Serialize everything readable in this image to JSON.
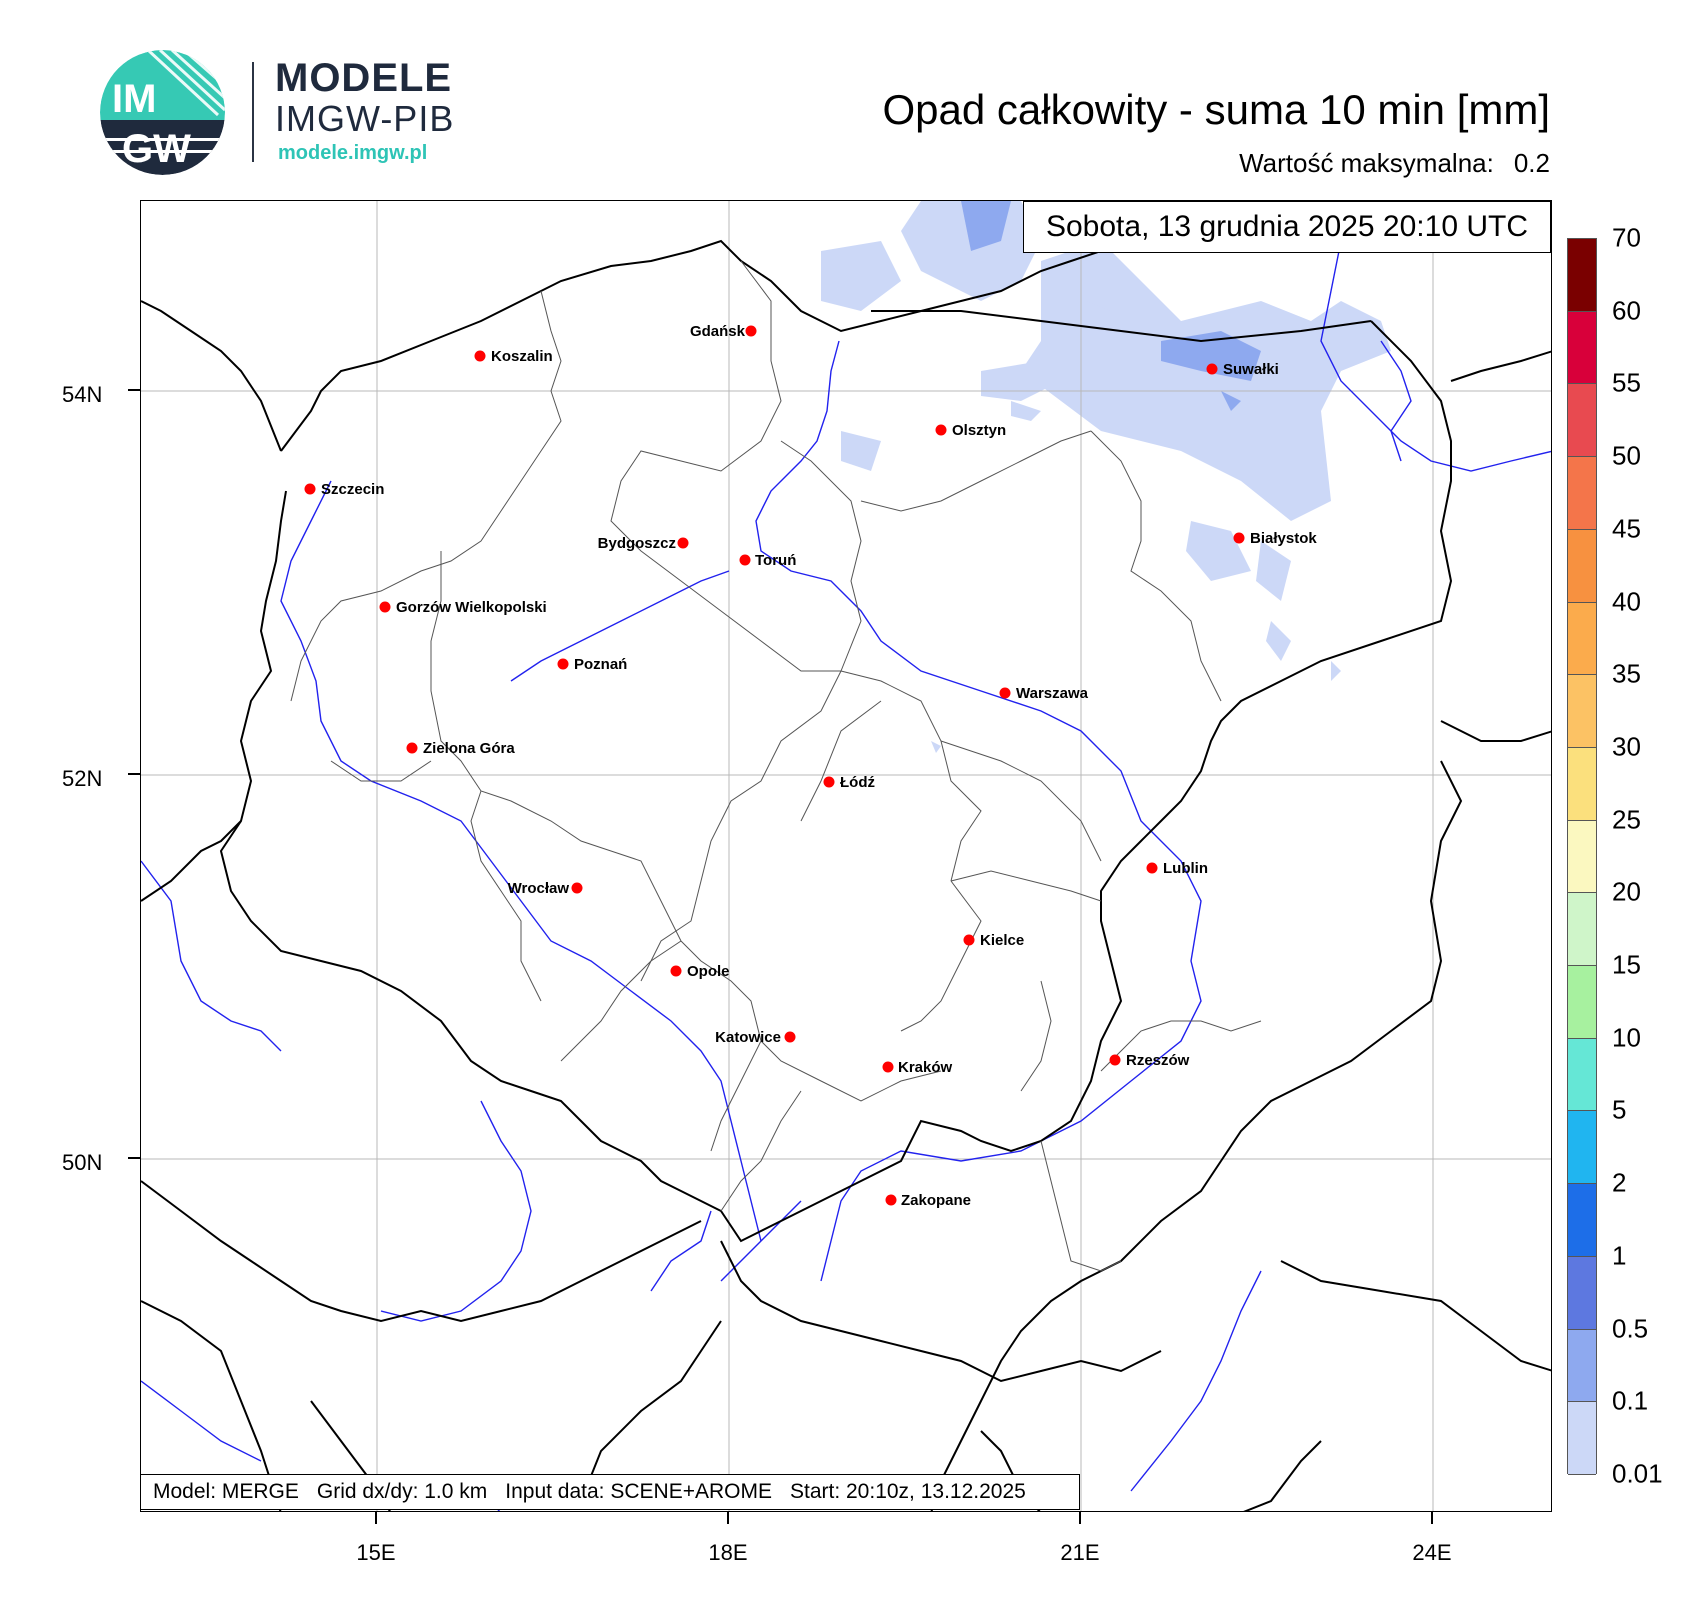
{
  "header": {
    "logo_title": "MODELE",
    "logo_subtitle": "IMGW-PIB",
    "logo_url": "modele.imgw.pl",
    "logo_mark_text_top": "IM",
    "logo_mark_text_bottom": "GW",
    "title": "Opad całkowity - suma 10 min [mm]",
    "max_label": "Wartość maksymalna:",
    "max_value": "0.2"
  },
  "map": {
    "date_text": "Sobota, 13 grudnia 2025 20:10 UTC",
    "lat_labels": [
      "54N",
      "52N",
      "50N"
    ],
    "lon_labels": [
      "15E",
      "18E",
      "21E",
      "24E"
    ],
    "cities": [
      {
        "name": "Gdańsk"
      },
      {
        "name": "Koszalin"
      },
      {
        "name": "Suwałki"
      },
      {
        "name": "Olsztyn"
      },
      {
        "name": "Szczecin"
      },
      {
        "name": "Białystok"
      },
      {
        "name": "Bydgoszcz"
      },
      {
        "name": "Toruń"
      },
      {
        "name": "Gorzów Wielkopolski"
      },
      {
        "name": "Poznań"
      },
      {
        "name": "Warszawa"
      },
      {
        "name": "Zielona Góra"
      },
      {
        "name": "Łódź"
      },
      {
        "name": "Lublin"
      },
      {
        "name": "Wrocław"
      },
      {
        "name": "Kielce"
      },
      {
        "name": "Opole"
      },
      {
        "name": "Katowice"
      },
      {
        "name": "Rzeszów"
      },
      {
        "name": "Kraków"
      },
      {
        "name": "Zakopane"
      }
    ]
  },
  "footer": {
    "model": "Model: MERGE",
    "grid": "Grid dx/dy: 1.0 km",
    "input": "Input data: SCENE+AROME",
    "start": "Start: 20:10z, 13.12.2025"
  },
  "colorbar": {
    "labels": [
      "70",
      "60",
      "55",
      "50",
      "45",
      "40",
      "35",
      "30",
      "25",
      "20",
      "15",
      "10",
      "5",
      "2",
      "1",
      "0.5",
      "0.1",
      "0.01"
    ],
    "colors": [
      "#7a0000",
      "#a80000",
      "#d8003a",
      "#e84a50",
      "#f4754a",
      "#f79140",
      "#fbab4c",
      "#fcc264",
      "#fbe07d",
      "#fbf8c0",
      "#cff5c9",
      "#a7f19f",
      "#65e7d6",
      "#20b5f0",
      "#1d6ee8",
      "#5d78e0",
      "#8ea9ef",
      "#ccd8f7"
    ]
  }
}
